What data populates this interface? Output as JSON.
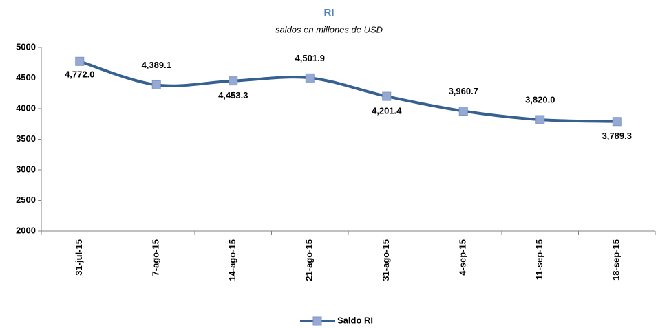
{
  "chart_data": {
    "type": "line",
    "title": "RI",
    "subtitle": "saldos en millones de USD",
    "categories": [
      "31-jul-15",
      "7-ago-15",
      "14-ago-15",
      "21-ago-15",
      "31-ago-15",
      "4-sep-15",
      "11-sep-15",
      "18-sep-15"
    ],
    "series": [
      {
        "name": "Saldo RI",
        "color": "#35608f",
        "marker_color": "#95a9d4",
        "values": [
          4772.0,
          4389.1,
          4453.3,
          4501.9,
          4201.4,
          3960.7,
          3820.0,
          3789.3
        ],
        "value_labels": [
          "4,772.0",
          "4,389.1",
          "4,453.3",
          "4,501.9",
          "4,201.4",
          "3,960.7",
          "3,820.0",
          "3,789.3"
        ]
      }
    ],
    "ylim": [
      2000,
      5000
    ],
    "yticks": [
      2000,
      2500,
      3000,
      3500,
      4000,
      4500,
      5000
    ],
    "grid": false,
    "legend": "bottom"
  }
}
